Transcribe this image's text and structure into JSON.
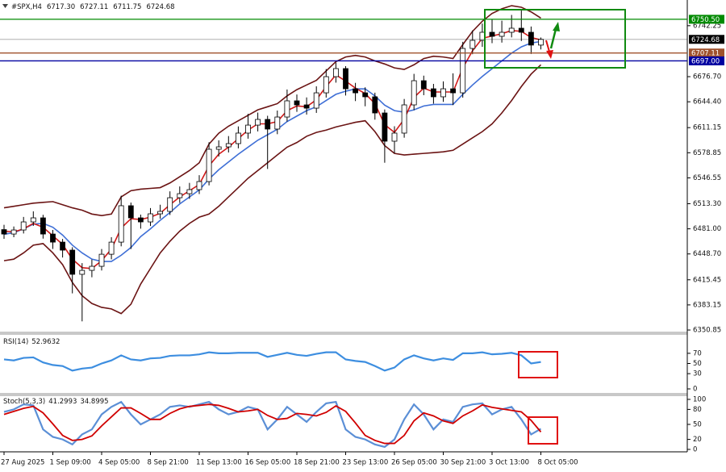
{
  "chart_data": [
    {
      "type": "candlestick",
      "title": "#SPX,H4",
      "header_values": [
        "6717.30",
        "6727.11",
        "6711.75",
        "6724.68"
      ],
      "categories": [
        "27 Aug 2025",
        null,
        null,
        null,
        null,
        "1 Sep 09:00",
        null,
        null,
        null,
        null,
        "4 Sep 05:00",
        null,
        null,
        null,
        null,
        "8 Sep 21:00",
        null,
        null,
        null,
        null,
        "11 Sep 13:00",
        null,
        null,
        null,
        null,
        "16 Sep 05:00",
        null,
        null,
        null,
        null,
        "18 Sep 21:00",
        null,
        null,
        null,
        null,
        "23 Sep 13:00",
        null,
        null,
        null,
        null,
        "26 Sep 05:00",
        null,
        null,
        null,
        null,
        "30 Sep 21:00",
        null,
        null,
        null,
        null,
        "3 Oct 13:00",
        null,
        null,
        null,
        null,
        "8 Oct 05:00"
      ],
      "open": [
        6480.0,
        6474.3,
        6479.5,
        6489.9,
        6495.1,
        6474.3,
        6463.9,
        6453.6,
        6422.5,
        6427.6,
        6432.8,
        6448.3,
        6463.9,
        6510.7,
        6495.1,
        6489.9,
        6500.3,
        6503.4,
        6521.0,
        6526.2,
        6531.4,
        6541.8,
        6583.3,
        6586.4,
        6590.6,
        6604.1,
        6614.4,
        6621.7,
        6609.3,
        6624.8,
        6645.6,
        6640.4,
        6636.2,
        6655.9,
        6676.7,
        6687.1,
        6661.1,
        6655.9,
        6650.8,
        6630.0,
        6593.7,
        6604.1,
        6640.4,
        6671.5,
        6661.1,
        6650.8,
        6661.1,
        6655.9,
        6713.0,
        6723.4,
        6733.8,
        6728.6,
        6733.8,
        6739.0,
        6733.8,
        6717.3
      ],
      "high": [
        6486.2,
        6484.0,
        6496.3,
        6503.5,
        6499.0,
        6479.6,
        6468.0,
        6457.3,
        6436.9,
        6441.5,
        6455.0,
        6470.2,
        6523.6,
        6514.8,
        6499.3,
        6507.7,
        6512.0,
        6529.2,
        6535.5,
        6540.1,
        6550.0,
        6592.4,
        6594.8,
        6600.3,
        6612.7,
        6628.8,
        6630.5,
        6626.4,
        6633.1,
        6660.2,
        6653.8,
        6650.0,
        6664.3,
        6686.5,
        6694.9,
        6690.2,
        6668.7,
        6663.0,
        6656.1,
        6634.5,
        6612.9,
        6648.0,
        6680.3,
        6678.0,
        6667.4,
        6670.6,
        6681.0,
        6721.5,
        6736.2,
        6745.0,
        6750.3,
        6748.7,
        6756.1,
        6762.4,
        6741.2,
        6727.11
      ],
      "low": [
        6468.1,
        6470.2,
        6475.0,
        6484.8,
        6468.4,
        6455.2,
        6444.1,
        6398.0,
        6362.0,
        6418.7,
        6427.4,
        6441.8,
        6458.5,
        6455.0,
        6481.2,
        6484.6,
        6494.1,
        6498.8,
        6514.3,
        6519.6,
        6525.7,
        6536.9,
        6574.0,
        6579.2,
        6584.5,
        6597.0,
        6606.3,
        6558.0,
        6602.7,
        6619.0,
        6631.5,
        6627.9,
        6630.1,
        6649.8,
        6669.0,
        6652.4,
        6645.3,
        6638.6,
        6621.4,
        6566.0,
        6578.3,
        6598.2,
        6633.7,
        6652.9,
        6642.0,
        6644.3,
        6640.2,
        6649.7,
        6705.6,
        6715.1,
        6719.8,
        6720.5,
        6727.2,
        6722.6,
        6705.9,
        6711.75
      ],
      "close": [
        6474.3,
        6479.5,
        6489.9,
        6495.1,
        6474.3,
        6463.9,
        6453.6,
        6422.5,
        6427.6,
        6432.8,
        6448.3,
        6463.9,
        6510.7,
        6495.1,
        6489.9,
        6500.3,
        6503.4,
        6521.0,
        6526.2,
        6531.4,
        6541.8,
        6583.3,
        6586.4,
        6590.6,
        6604.1,
        6614.4,
        6621.7,
        6609.3,
        6624.8,
        6645.6,
        6640.4,
        6636.2,
        6655.9,
        6676.7,
        6687.1,
        6661.1,
        6655.9,
        6650.8,
        6630.0,
        6593.7,
        6604.1,
        6640.4,
        6671.5,
        6661.1,
        6650.8,
        6661.1,
        6655.9,
        6713.0,
        6723.4,
        6733.8,
        6728.6,
        6733.8,
        6739.0,
        6733.8,
        6717.3,
        6724.68
      ],
      "up_color": "#ffffff",
      "down_color": "#000000",
      "bands": {
        "color": "#6b1414",
        "upper": [
          6508,
          6510,
          6512,
          6514,
          6515,
          6516,
          6512,
          6508,
          6505,
          6500,
          6498,
          6500,
          6522,
          6530,
          6532,
          6533,
          6534,
          6540,
          6548,
          6556,
          6566,
          6590,
          6604,
          6613,
          6620,
          6627,
          6634,
          6638,
          6642,
          6652,
          6660,
          6666,
          6672,
          6684,
          6696,
          6702,
          6704,
          6702,
          6697,
          6693,
          6688,
          6686,
          6692,
          6700,
          6703,
          6702,
          6700,
          6718,
          6735,
          6748,
          6758,
          6764,
          6768,
          6766,
          6760,
          6752
        ],
        "lower": [
          6440,
          6442,
          6450,
          6460,
          6462,
          6450,
          6435,
          6412,
          6395,
          6385,
          6380,
          6378,
          6372,
          6384,
          6410,
          6430,
          6450,
          6465,
          6478,
          6488,
          6496,
          6500,
          6510,
          6522,
          6534,
          6546,
          6556,
          6566,
          6576,
          6586,
          6592,
          6600,
          6605,
          6608,
          6612,
          6615,
          6618,
          6620,
          6606,
          6588,
          6578,
          6576,
          6577,
          6578,
          6579,
          6580,
          6582,
          6590,
          6598,
          6606,
          6616,
          6630,
          6646,
          6664,
          6680,
          6692
        ]
      },
      "overlays": [
        {
          "color": "#3f6fd6",
          "values": [
            6474,
            6476,
            6481,
            6487,
            6488,
            6483,
            6473,
            6460,
            6450,
            6442,
            6439,
            6439,
            6447,
            6457,
            6471,
            6481,
            6492,
            6502,
            6513,
            6522,
            6531,
            6545,
            6557,
            6567,
            6577,
            6586,
            6595,
            6602,
            6609,
            6619,
            6626,
            6633,
            6638,
            6646,
            6654,
            6658,
            6661,
            6661,
            6652,
            6640,
            6633,
            6631,
            6634,
            6639,
            6641,
            6641,
            6641,
            6654,
            6666,
            6677,
            6687,
            6697,
            6707,
            6715,
            6720,
            6722
          ]
        },
        {
          "color": "#d11a1a",
          "values": [
            6478,
            6477,
            6481,
            6488,
            6483,
            6472,
            6461,
            6442,
            6431,
            6430,
            6440,
            6455,
            6482,
            6494,
            6493,
            6496,
            6501,
            6512,
            6522,
            6530,
            6538,
            6562,
            6577,
            6586,
            6597,
            6608,
            6616,
            6616,
            6619,
            6633,
            6639,
            6638,
            6647,
            6664,
            6679,
            6671,
            6662,
            6655,
            6642,
            6615,
            6605,
            6622,
            6650,
            6662,
            6657,
            6657,
            6657,
            6688,
            6710,
            6726,
            6729,
            6732,
            6736,
            6735,
            6727,
            6724
          ]
        }
      ],
      "levels": [
        {
          "value": 6750.5,
          "label": "6750.50",
          "color": "#008a00"
        },
        {
          "value": 6724.68,
          "color": "#000000"
        },
        {
          "value": 6707.11,
          "color": "#a0522d"
        },
        {
          "value": 6697,
          "label": "6697.00",
          "color": "#0000a0"
        }
      ],
      "ylim": [
        6348.8,
        6775.3
      ],
      "yticks": [
        6742.25,
        {
          "value": 6676.7,
          "label": "6676.70"
        },
        {
          "value": 6644.4,
          "label": "6644.40"
        },
        6611.15,
        6578.85,
        6546.55,
        {
          "value": 6513.3,
          "label": "6513.30"
        },
        {
          "value": 6481,
          "label": "6481.00"
        },
        {
          "value": 6448.7,
          "label": "6448.70"
        },
        6415.45,
        6383.15,
        6350.85
      ]
    },
    {
      "type": "line",
      "title": "RSI(14)",
      "series": [
        {
          "color": "#3d8ee0",
          "values": [
            58,
            56,
            61,
            62,
            52,
            47,
            45,
            36,
            40,
            42,
            50,
            56,
            66,
            58,
            56,
            60,
            61,
            65,
            66,
            66,
            68,
            72,
            70,
            70,
            71,
            71,
            71,
            63,
            67,
            71,
            67,
            65,
            69,
            72,
            72,
            58,
            55,
            53,
            45,
            36,
            42,
            58,
            66,
            60,
            56,
            60,
            57,
            70,
            70,
            72,
            68,
            69,
            71,
            66,
            50,
            52.9632
          ]
        }
      ],
      "ylim": [
        0,
        100
      ],
      "yticks": [
        0,
        30,
        50,
        70
      ]
    },
    {
      "type": "line",
      "title": "Stoch(5,3,3)",
      "series": [
        {
          "color": "#5b8fd6",
          "values": [
            75,
            80,
            90,
            88,
            40,
            25,
            20,
            10,
            30,
            40,
            70,
            85,
            95,
            70,
            50,
            60,
            70,
            85,
            88,
            85,
            90,
            95,
            80,
            70,
            75,
            85,
            80,
            40,
            60,
            85,
            70,
            55,
            75,
            92,
            95,
            40,
            25,
            20,
            10,
            5,
            20,
            60,
            90,
            70,
            40,
            60,
            55,
            85,
            90,
            92,
            70,
            80,
            85,
            60,
            30,
            41.2993
          ]
        },
        {
          "color": "#d00000",
          "values": [
            70,
            76,
            82,
            86,
            73,
            51,
            28,
            18,
            20,
            27,
            47,
            65,
            83,
            83,
            72,
            60,
            60,
            72,
            81,
            86,
            88,
            90,
            88,
            82,
            75,
            77,
            80,
            68,
            60,
            62,
            72,
            70,
            67,
            74,
            87,
            76,
            53,
            28,
            18,
            12,
            12,
            28,
            57,
            73,
            67,
            57,
            52,
            67,
            77,
            89,
            84,
            81,
            78,
            75,
            58,
            34.8995
          ]
        }
      ],
      "ylim": [
        0,
        100
      ],
      "yticks": [
        0,
        20,
        50,
        80,
        100
      ]
    }
  ]
}
